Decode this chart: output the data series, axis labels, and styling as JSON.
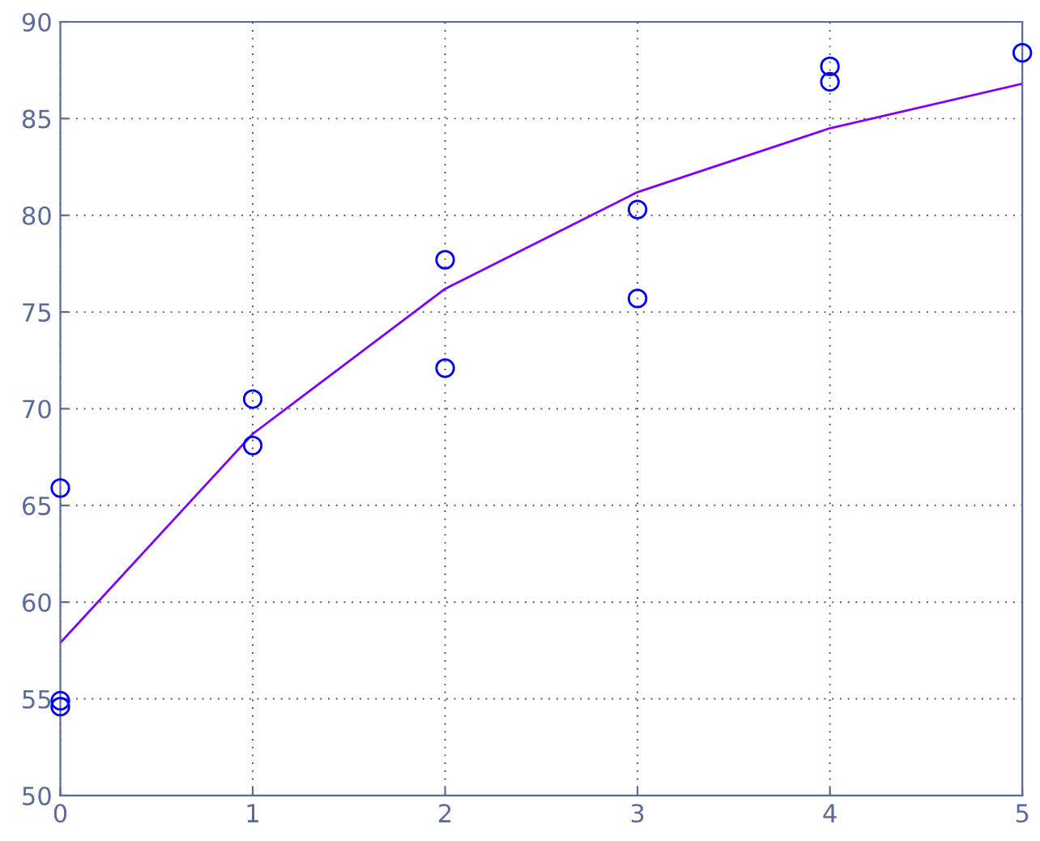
{
  "chart_data": {
    "type": "scatter",
    "xlim": [
      0,
      5
    ],
    "ylim": [
      50,
      90
    ],
    "xticks": [
      0,
      1,
      2,
      3,
      4,
      5
    ],
    "yticks": [
      50,
      55,
      60,
      65,
      70,
      75,
      80,
      85,
      90
    ],
    "grid": true,
    "series": [
      {
        "color": "#0000ff",
        "marker": "circle",
        "x": [
          0,
          0,
          0,
          1,
          1,
          2,
          2,
          3,
          3,
          4,
          4,
          5
        ],
        "values": [
          65.9,
          54.9,
          54.6,
          70.5,
          68.1,
          77.7,
          72.1,
          80.3,
          75.7,
          87.7,
          86.9,
          88.4
        ]
      },
      {
        "type": "line",
        "color": "#7f00ff",
        "marker": "none",
        "line_style": "solid",
        "x": [
          0,
          1,
          2,
          3,
          4,
          5
        ],
        "values": [
          57.9,
          68.7,
          76.2,
          81.2,
          84.5,
          86.8
        ]
      }
    ]
  }
}
